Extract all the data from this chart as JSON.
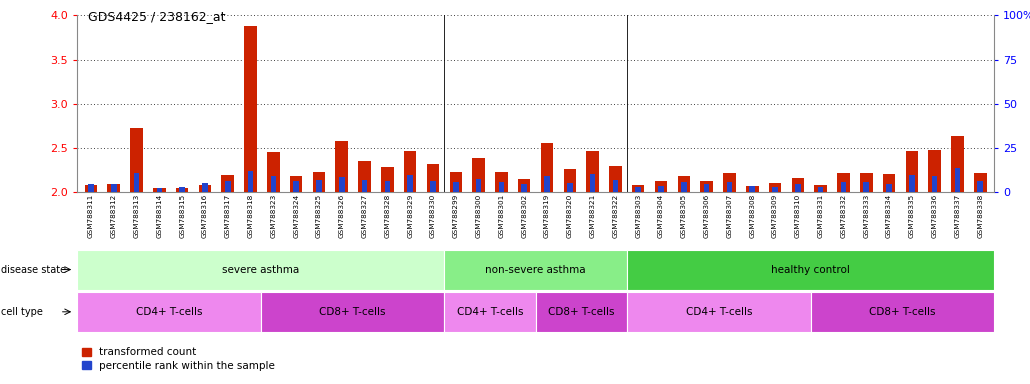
{
  "title": "GDS4425 / 238162_at",
  "samples": [
    "GSM788311",
    "GSM788312",
    "GSM788313",
    "GSM788314",
    "GSM788315",
    "GSM788316",
    "GSM788317",
    "GSM788318",
    "GSM788323",
    "GSM788324",
    "GSM788325",
    "GSM788326",
    "GSM788327",
    "GSM788328",
    "GSM788329",
    "GSM788330",
    "GSM788299",
    "GSM788300",
    "GSM788301",
    "GSM788302",
    "GSM788319",
    "GSM788320",
    "GSM788321",
    "GSM788322",
    "GSM788303",
    "GSM788304",
    "GSM788305",
    "GSM788306",
    "GSM788307",
    "GSM788308",
    "GSM788309",
    "GSM788310",
    "GSM788331",
    "GSM788332",
    "GSM788333",
    "GSM788334",
    "GSM788335",
    "GSM788336",
    "GSM788337",
    "GSM788338"
  ],
  "red_values": [
    2.08,
    2.09,
    2.72,
    2.04,
    2.05,
    2.08,
    2.19,
    3.88,
    2.45,
    2.18,
    2.23,
    2.58,
    2.35,
    2.28,
    2.46,
    2.32,
    2.23,
    2.39,
    2.23,
    2.15,
    2.55,
    2.26,
    2.46,
    2.3,
    2.08,
    2.12,
    2.18,
    2.13,
    2.22,
    2.07,
    2.1,
    2.16,
    2.08,
    2.22,
    2.22,
    2.2,
    2.46,
    2.47,
    2.63,
    2.21
  ],
  "blue_values": [
    4.5,
    4.5,
    11.0,
    2.5,
    3.0,
    5.0,
    6.5,
    12.0,
    9.0,
    6.5,
    7.0,
    8.5,
    7.0,
    6.5,
    9.5,
    6.5,
    5.5,
    7.5,
    5.5,
    4.5,
    9.0,
    5.0,
    10.0,
    7.0,
    3.0,
    3.5,
    5.5,
    4.5,
    5.5,
    3.5,
    3.0,
    4.5,
    3.0,
    5.5,
    5.5,
    4.5,
    9.5,
    9.0,
    13.5,
    6.5
  ],
  "disease_state_groups": [
    {
      "label": "severe asthma",
      "start": 0,
      "end": 15,
      "color": "#ccffcc"
    },
    {
      "label": "non-severe asthma",
      "start": 16,
      "end": 23,
      "color": "#88ee88"
    },
    {
      "label": "healthy control",
      "start": 24,
      "end": 39,
      "color": "#44cc44"
    }
  ],
  "cell_type_groups": [
    {
      "label": "CD4+ T-cells",
      "start": 0,
      "end": 7,
      "color": "#ee88ee"
    },
    {
      "label": "CD8+ T-cells",
      "start": 8,
      "end": 15,
      "color": "#cc44cc"
    },
    {
      "label": "CD4+ T-cells",
      "start": 16,
      "end": 19,
      "color": "#ee88ee"
    },
    {
      "label": "CD8+ T-cells",
      "start": 20,
      "end": 23,
      "color": "#cc44cc"
    },
    {
      "label": "CD4+ T-cells",
      "start": 24,
      "end": 31,
      "color": "#ee88ee"
    },
    {
      "label": "CD8+ T-cells",
      "start": 32,
      "end": 39,
      "color": "#cc44cc"
    }
  ],
  "ylim_left": [
    2.0,
    4.0
  ],
  "ylim_right": [
    0,
    100
  ],
  "yticks_left": [
    2.0,
    2.5,
    3.0,
    3.5,
    4.0
  ],
  "yticks_right": [
    0,
    25,
    50,
    75,
    100
  ],
  "ytick_labels_right": [
    "0",
    "25",
    "50",
    "75",
    "100%"
  ],
  "red_color": "#cc2200",
  "blue_color": "#2244cc",
  "bar_width": 0.55,
  "base_value": 2.0,
  "legend_labels": [
    "transformed count",
    "percentile rank within the sample"
  ],
  "xtick_bg_color": "#dddddd",
  "disease_state_label": "disease state",
  "cell_type_label": "cell type"
}
